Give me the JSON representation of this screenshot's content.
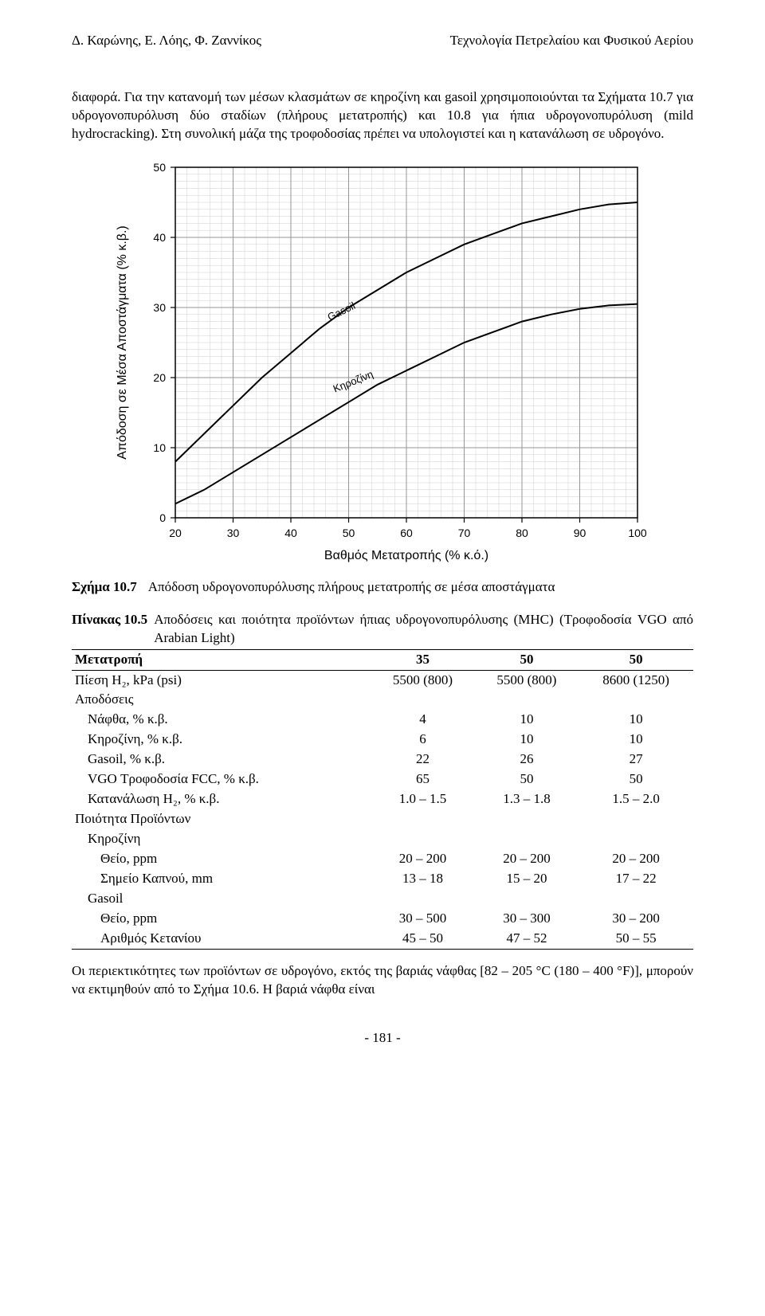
{
  "header": {
    "left": "Δ. Καρώνης, Ε. Λόης, Φ. Ζαννίκος",
    "right": "Τεχνολογία Πετρελαίου και Φυσικού Αερίου"
  },
  "paragraph1": "διαφορά. Για την κατανομή των μέσων κλασμάτων σε κηροζίνη και gasoil χρησιμοποιούνται τα Σχήματα 10.7 για υδρογονοπυρόλυση δύο σταδίων (πλήρους μετατροπής) και 10.8 για ήπια υδρογονοπυρόλυση (mild hydrocracking). Στη συνολική μάζα της τροφοδοσίας πρέπει να υπολογιστεί και η κατανάλωση σε υδρογόνο.",
  "chart": {
    "type": "line",
    "x_label": "Βαθμός Μετατροπής (% κ.ό.)",
    "y_label": "Απόδοση σε Μέσα Αποστάγματα (% κ.β.)",
    "x_ticks": [
      20,
      30,
      40,
      50,
      60,
      70,
      80,
      90,
      100
    ],
    "y_ticks": [
      0,
      10,
      20,
      30,
      40,
      50
    ],
    "xlim": [
      20,
      100
    ],
    "ylim": [
      0,
      50
    ],
    "plot_bg": "#ffffff",
    "grid_major_color": "#969696",
    "grid_minor_color": "#cfcfcf",
    "axis_color": "#000000",
    "line_color": "#000000",
    "line_width": 2,
    "tick_fontsize": 14,
    "label_fontsize": 16,
    "x_minor_step": 2,
    "y_minor_step": 1,
    "series": [
      {
        "name": "Gasoil",
        "label": "Gasoil",
        "label_pos": {
          "x": 49,
          "y": 29
        },
        "label_angle": -26,
        "points": [
          {
            "x": 20,
            "y": 8
          },
          {
            "x": 25,
            "y": 12
          },
          {
            "x": 30,
            "y": 16
          },
          {
            "x": 35,
            "y": 20
          },
          {
            "x": 40,
            "y": 23.5
          },
          {
            "x": 45,
            "y": 27
          },
          {
            "x": 50,
            "y": 30
          },
          {
            "x": 55,
            "y": 32.5
          },
          {
            "x": 60,
            "y": 35
          },
          {
            "x": 65,
            "y": 37
          },
          {
            "x": 70,
            "y": 39
          },
          {
            "x": 75,
            "y": 40.5
          },
          {
            "x": 80,
            "y": 42
          },
          {
            "x": 85,
            "y": 43
          },
          {
            "x": 90,
            "y": 44
          },
          {
            "x": 95,
            "y": 44.7
          },
          {
            "x": 100,
            "y": 45
          }
        ]
      },
      {
        "name": "Kerosene",
        "label": "Κηροζίνη",
        "label_pos": {
          "x": 51,
          "y": 19
        },
        "label_angle": -22,
        "points": [
          {
            "x": 20,
            "y": 2
          },
          {
            "x": 25,
            "y": 4
          },
          {
            "x": 30,
            "y": 6.5
          },
          {
            "x": 35,
            "y": 9
          },
          {
            "x": 40,
            "y": 11.5
          },
          {
            "x": 45,
            "y": 14
          },
          {
            "x": 50,
            "y": 16.5
          },
          {
            "x": 55,
            "y": 19
          },
          {
            "x": 60,
            "y": 21
          },
          {
            "x": 65,
            "y": 23
          },
          {
            "x": 70,
            "y": 25
          },
          {
            "x": 75,
            "y": 26.5
          },
          {
            "x": 80,
            "y": 28
          },
          {
            "x": 85,
            "y": 29
          },
          {
            "x": 90,
            "y": 29.8
          },
          {
            "x": 95,
            "y": 30.3
          },
          {
            "x": 100,
            "y": 30.5
          }
        ]
      }
    ]
  },
  "caption": {
    "label": "Σχήμα 10.7",
    "text": "Απόδοση υδρογονοπυρόλυσης πλήρους μετατροπής σε μέσα αποστάγματα"
  },
  "table_title": {
    "label": "Πίνακας 10.5",
    "text": "Αποδόσεις και ποιότητα προϊόντων ήπιας υδρογονοπυρόλυσης (MHC) (Τροφοδοσία VGO από Arabian Light)"
  },
  "table": {
    "columns": [
      "Μετατροπή",
      "35",
      "50",
      "50"
    ],
    "col_align": [
      "left",
      "center",
      "center",
      "center"
    ],
    "rows": [
      {
        "label": "Πίεση Η₂, kPa (psi)",
        "cells": [
          "5500 (800)",
          "5500 (800)",
          "8600 (1250)"
        ],
        "indent": 0
      },
      {
        "label": "Αποδόσεις",
        "cells": [
          "",
          "",
          ""
        ],
        "indent": 0
      },
      {
        "label": "Νάφθα, % κ.β.",
        "cells": [
          "4",
          "10",
          "10"
        ],
        "indent": 1
      },
      {
        "label": "Κηροζίνη, % κ.β.",
        "cells": [
          "6",
          "10",
          "10"
        ],
        "indent": 1
      },
      {
        "label": "Gasoil, % κ.β.",
        "cells": [
          "22",
          "26",
          "27"
        ],
        "indent": 1
      },
      {
        "label": "VGO Τροφοδοσία FCC, % κ.β.",
        "cells": [
          "65",
          "50",
          "50"
        ],
        "indent": 1
      },
      {
        "label": "Κατανάλωση Η₂, % κ.β.",
        "cells": [
          "1.0 – 1.5",
          "1.3 – 1.8",
          "1.5 – 2.0"
        ],
        "indent": 1
      },
      {
        "label": "Ποιότητα Προϊόντων",
        "cells": [
          "",
          "",
          ""
        ],
        "indent": 0
      },
      {
        "label": "Κηροζίνη",
        "cells": [
          "",
          "",
          ""
        ],
        "indent": 1
      },
      {
        "label": "Θείο, ppm",
        "cells": [
          "20 – 200",
          "20 – 200",
          "20 – 200"
        ],
        "indent": 2
      },
      {
        "label": "Σημείο Καπνού, mm",
        "cells": [
          "13 – 18",
          "15 – 20",
          "17 – 22"
        ],
        "indent": 2
      },
      {
        "label": "Gasoil",
        "cells": [
          "",
          "",
          ""
        ],
        "indent": 1
      },
      {
        "label": "Θείο, ppm",
        "cells": [
          "30 – 500",
          "30 – 300",
          "30 – 200"
        ],
        "indent": 2
      },
      {
        "label": "Αριθμός Κετανίου",
        "cells": [
          "45 – 50",
          "47 – 52",
          "50 – 55"
        ],
        "indent": 2
      }
    ]
  },
  "paragraph2": "Οι περιεκτικότητες των προϊόντων σε υδρογόνο, εκτός της βαριάς νάφθας [82 – 205 °C (180 – 400 °F)], μπορούν να εκτιμηθούν από το Σχήμα 10.6. Η βαριά νάφθα είναι",
  "page_number": "- 181 -"
}
